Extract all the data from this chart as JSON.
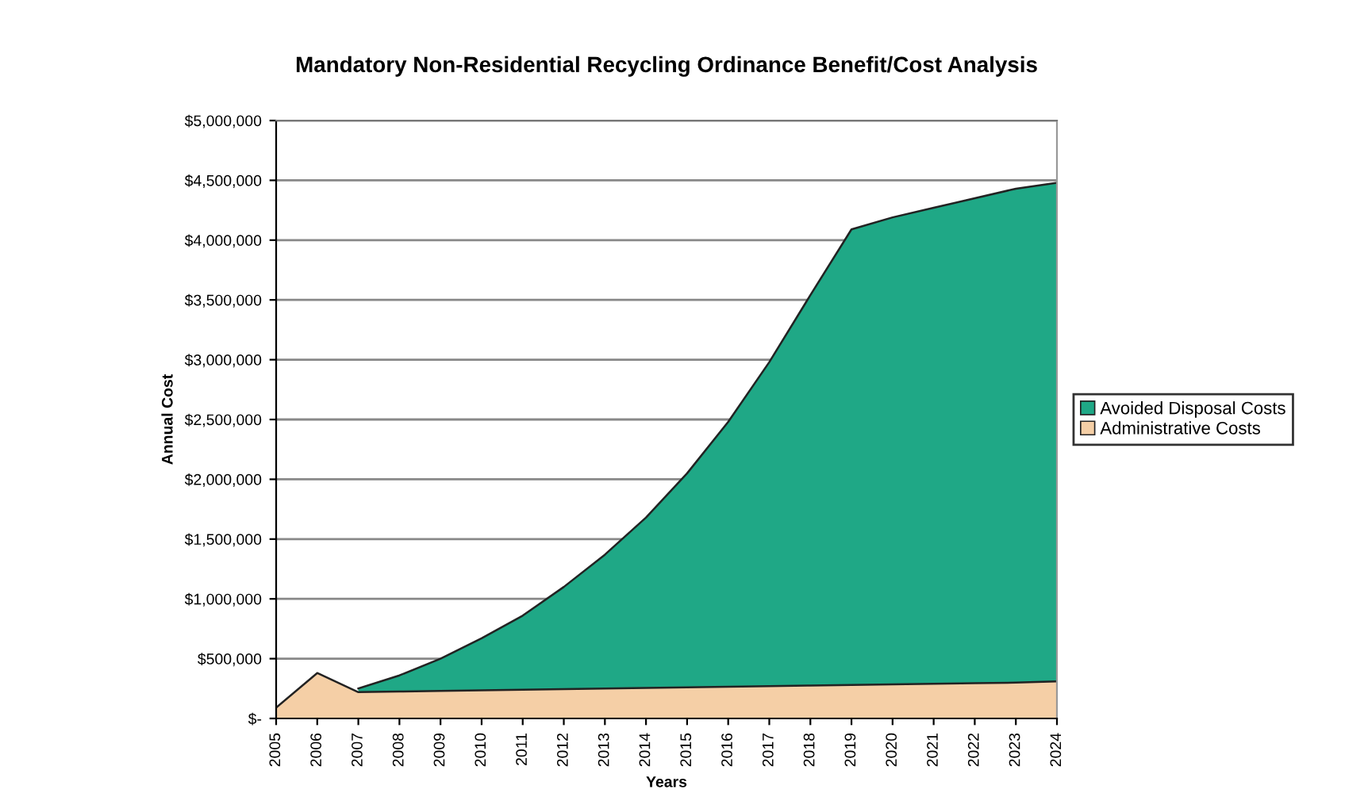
{
  "chart_data": {
    "type": "area",
    "title": "Mandatory Non-Residential Recycling Ordinance Benefit/Cost Analysis",
    "xlabel": "Years",
    "ylabel": "Annual Cost",
    "categories": [
      "2005",
      "2006",
      "2007",
      "2008",
      "2009",
      "2010",
      "2011",
      "2012",
      "2013",
      "2014",
      "2015",
      "2016",
      "2017",
      "2018",
      "2019",
      "2020",
      "2021",
      "2022",
      "2023",
      "2024"
    ],
    "series": [
      {
        "name": "Avoided Disposal Costs",
        "color": "#1fa886",
        "values": [
          null,
          null,
          250000.0,
          360000.0,
          500000.0,
          670000.0,
          860000.0,
          1100000.0,
          1370000.0,
          1680000.0,
          2050000.0,
          2480000.0,
          2980000.0,
          3540000.0,
          4090000.0,
          4190000.0,
          4270000.0,
          4350000.0,
          4430000.0,
          4480000.0
        ]
      },
      {
        "name": "Administrative Costs",
        "color": "#f5cfa6",
        "values": [
          90000.0,
          380000.0,
          220000.0,
          225000.0,
          230000.0,
          235000.0,
          240000.0,
          245000.0,
          250000.0,
          255000.0,
          260000.0,
          265000.0,
          270000.0,
          275000.0,
          280000.0,
          285000.0,
          290000.0,
          295000.0,
          300000.0,
          310000.0
        ]
      }
    ],
    "ylim": [
      0,
      5000000
    ],
    "yticks": [
      {
        "value": 0,
        "label": "$-"
      },
      {
        "value": 500000,
        "label": "$500,000"
      },
      {
        "value": 1000000,
        "label": "$1,000,000"
      },
      {
        "value": 1500000,
        "label": "$1,500,000"
      },
      {
        "value": 2000000,
        "label": "$2,000,000"
      },
      {
        "value": 2500000,
        "label": "$2,500,000"
      },
      {
        "value": 3000000,
        "label": "$3,000,000"
      },
      {
        "value": 3500000,
        "label": "$3,500,000"
      },
      {
        "value": 4000000,
        "label": "$4,000,000"
      },
      {
        "value": 4500000,
        "label": "$4,500,000"
      },
      {
        "value": 5000000,
        "label": "$5,000,000"
      }
    ],
    "grid": "y",
    "legend": "right"
  }
}
